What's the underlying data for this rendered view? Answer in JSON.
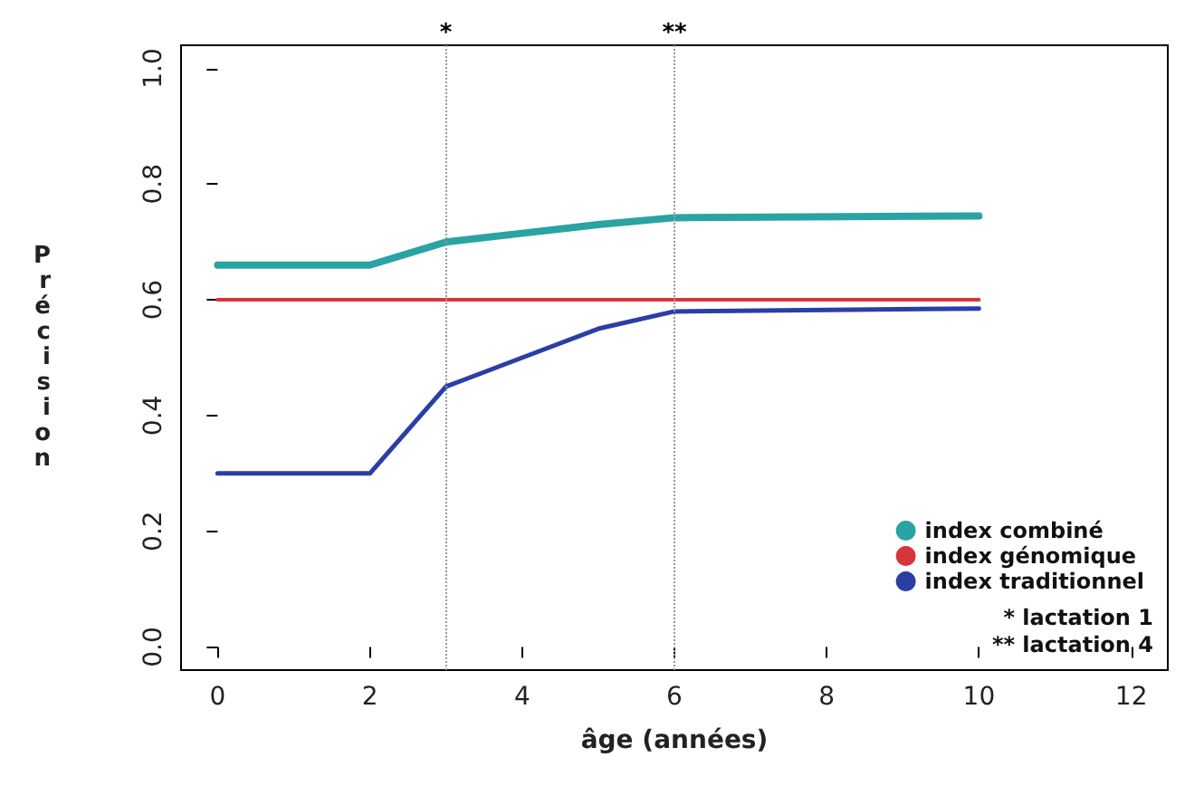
{
  "chart_data": {
    "type": "line",
    "xlabel": "âge (années)",
    "ylabel": "Précision",
    "x": [
      0,
      2,
      3,
      4,
      5,
      6,
      10
    ],
    "xlim": [
      -0.48,
      12.48
    ],
    "xticks": [
      0,
      2,
      4,
      6,
      8,
      10,
      12
    ],
    "ylim": [
      -0.04,
      1.04
    ],
    "yticks": [
      {
        "value": 0,
        "label": "0.0"
      },
      {
        "value": 0.2,
        "label": "0.2"
      },
      {
        "value": 0.4,
        "label": "0.4"
      },
      {
        "value": 0.6,
        "label": "0.6"
      },
      {
        "value": 0.8,
        "label": "0.8"
      },
      {
        "value": 1,
        "label": "1.0"
      }
    ],
    "series": [
      {
        "name": "index combiné",
        "color": "#2aa3a3",
        "values": [
          0.66,
          0.66,
          0.7,
          0.715,
          0.73,
          0.742,
          0.745
        ]
      },
      {
        "name": "index génomique",
        "color": "#d8353b",
        "values": [
          0.6,
          0.6,
          0.6,
          0.6,
          0.6,
          0.6,
          0.6
        ]
      },
      {
        "name": "index traditionnel",
        "color": "#2a3ea6",
        "values": [
          0.3,
          0.3,
          0.45,
          0.5,
          0.55,
          0.58,
          0.585
        ]
      }
    ],
    "ref_lines": [
      {
        "axis": "x",
        "value": 3,
        "label": "*",
        "color": "#999999",
        "line_style": "dotted"
      },
      {
        "axis": "x",
        "value": 6,
        "label": "**",
        "color": "#999999",
        "line_style": "dotted"
      }
    ],
    "annotations": [
      "* lactation 1",
      "** lactation 4"
    ],
    "legend": "bottom right",
    "grid": false,
    "marker": "none",
    "line_style": "solid"
  }
}
